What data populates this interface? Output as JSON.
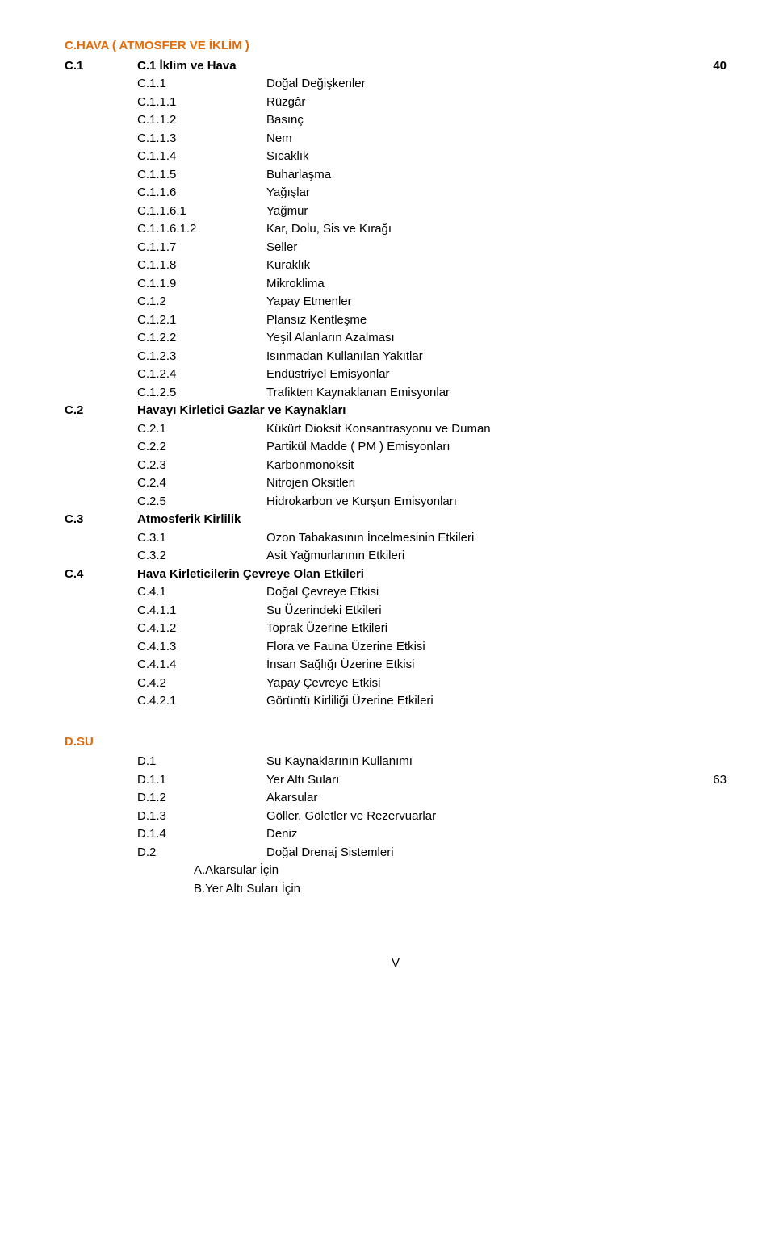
{
  "colors": {
    "heading": "#e36b0a",
    "text": "#000000",
    "background": "#ffffff"
  },
  "typography": {
    "font_family": "Arial",
    "base_size_pt": 11,
    "line_height": 1.5
  },
  "sections": {
    "C": {
      "title_code": "C.",
      "title_text": "HAVA ( ATMOSFER VE İKLİM )",
      "items": [
        {
          "code": "C.1",
          "label": "C.1 İklim ve Hava",
          "page": "40",
          "bold": true,
          "indent": 0,
          "split_code": "C.1"
        },
        {
          "code": "C.1.1",
          "label": "Doğal Değişkenler",
          "indent": 1
        },
        {
          "code": "C.1.1.1",
          "label": "Rüzgâr",
          "indent": 1
        },
        {
          "code": "C.1.1.2",
          "label": "Basınç",
          "indent": 1
        },
        {
          "code": "C.1.1.3",
          "label": "Nem",
          "indent": 1
        },
        {
          "code": "C.1.1.4",
          "label": "Sıcaklık",
          "indent": 1
        },
        {
          "code": "C.1.1.5",
          "label": "Buharlaşma",
          "indent": 1
        },
        {
          "code": "C.1.1.6",
          "label": "Yağışlar",
          "indent": 1
        },
        {
          "code": "C.1.1.6.1",
          "label": "Yağmur",
          "indent": 1
        },
        {
          "code": "C.1.1.6.1.2",
          "label": "Kar, Dolu, Sis ve Kırağı",
          "indent": 1
        },
        {
          "code": "C.1.1.7",
          "label": "Seller",
          "indent": 1
        },
        {
          "code": "C.1.1.8",
          "label": "Kuraklık",
          "indent": 1
        },
        {
          "code": "C.1.1.9",
          "label": "Mikroklima",
          "indent": 1
        },
        {
          "code": "C.1.2",
          "label": "Yapay Etmenler",
          "indent": 1
        },
        {
          "code": "C.1.2.1",
          "label": "Plansız Kentleşme",
          "indent": 1
        },
        {
          "code": "C.1.2.2",
          "label": "Yeşil Alanların Azalması",
          "indent": 1
        },
        {
          "code": "C.1.2.3",
          "label": "Isınmadan Kullanılan Yakıtlar",
          "indent": 1
        },
        {
          "code": "C.1.2.4",
          "label": "Endüstriyel Emisyonlar",
          "indent": 1
        },
        {
          "code": "C.1.2.5",
          "label": "Trafikten Kaynaklanan Emisyonlar",
          "indent": 1
        },
        {
          "code": "C.2",
          "label": "Havayı Kirletici Gazlar ve Kaynakları",
          "bold": true,
          "indent": 0
        },
        {
          "code": "C.2.1",
          "label": "Kükürt Dioksit Konsantrasyonu ve Duman",
          "indent": 1
        },
        {
          "code": "C.2.2",
          "label": "Partikül Madde ( PM ) Emisyonları",
          "indent": 1
        },
        {
          "code": "C.2.3",
          "label": "Karbonmonoksit",
          "indent": 1
        },
        {
          "code": "C.2.4",
          "label": "Nitrojen Oksitleri",
          "indent": 1
        },
        {
          "code": "C.2.5",
          "label": "Hidrokarbon ve Kurşun Emisyonları",
          "indent": 1
        },
        {
          "code": "C.3",
          "label": "Atmosferik Kirlilik",
          "bold": true,
          "indent": 0
        },
        {
          "code": "C.3.1",
          "label": "Ozon Tabakasının İncelmesinin Etkileri",
          "indent": 1
        },
        {
          "code": "C.3.2",
          "label": "Asit Yağmurlarının Etkileri",
          "indent": 1
        },
        {
          "code": "C.4",
          "label": "Hava Kirleticilerin Çevreye Olan Etkileri",
          "bold": true,
          "indent": 0
        },
        {
          "code": "C.4.1",
          "label": "Doğal Çevreye Etkisi",
          "indent": 1
        },
        {
          "code": "C.4.1.1",
          "label": "Su Üzerindeki Etkileri",
          "indent": 1
        },
        {
          "code": "C.4.1.2",
          "label": "Toprak Üzerine Etkileri",
          "indent": 1
        },
        {
          "code": "C.4.1.3",
          "label": "Flora ve Fauna Üzerine Etkisi",
          "indent": 1
        },
        {
          "code": "C.4.1.4",
          "label": "İnsan Sağlığı Üzerine Etkisi",
          "indent": 1
        },
        {
          "code": "C.4.2",
          "label": "Yapay Çevreye Etkisi",
          "indent": 1
        },
        {
          "code": "C.4.2.1",
          "label": "Görüntü Kirliliği Üzerine Etkileri",
          "indent": 1
        }
      ]
    },
    "D": {
      "title_code": "D.",
      "title_text": "SU",
      "items": [
        {
          "code": "D.1",
          "label": "Su Kaynaklarının Kullanımı",
          "indent": 1
        },
        {
          "code": "D.1.1",
          "label": "Yer Altı Suları",
          "page": "63",
          "indent": 1
        },
        {
          "code": "D.1.2",
          "label": "Akarsular",
          "indent": 1
        },
        {
          "code": "D.1.3",
          "label": "Göller, Göletler ve Rezervuarlar",
          "indent": 1
        },
        {
          "code": "D.1.4",
          "label": "Deniz",
          "indent": 1
        },
        {
          "code": "D.2",
          "label": "Doğal Drenaj Sistemleri",
          "indent": 1
        },
        {
          "label": "A.Akarsular İçin",
          "sublabel": true
        },
        {
          "label": "B.Yer Altı Suları İçin",
          "sublabel": true
        }
      ]
    }
  },
  "footer": "V"
}
